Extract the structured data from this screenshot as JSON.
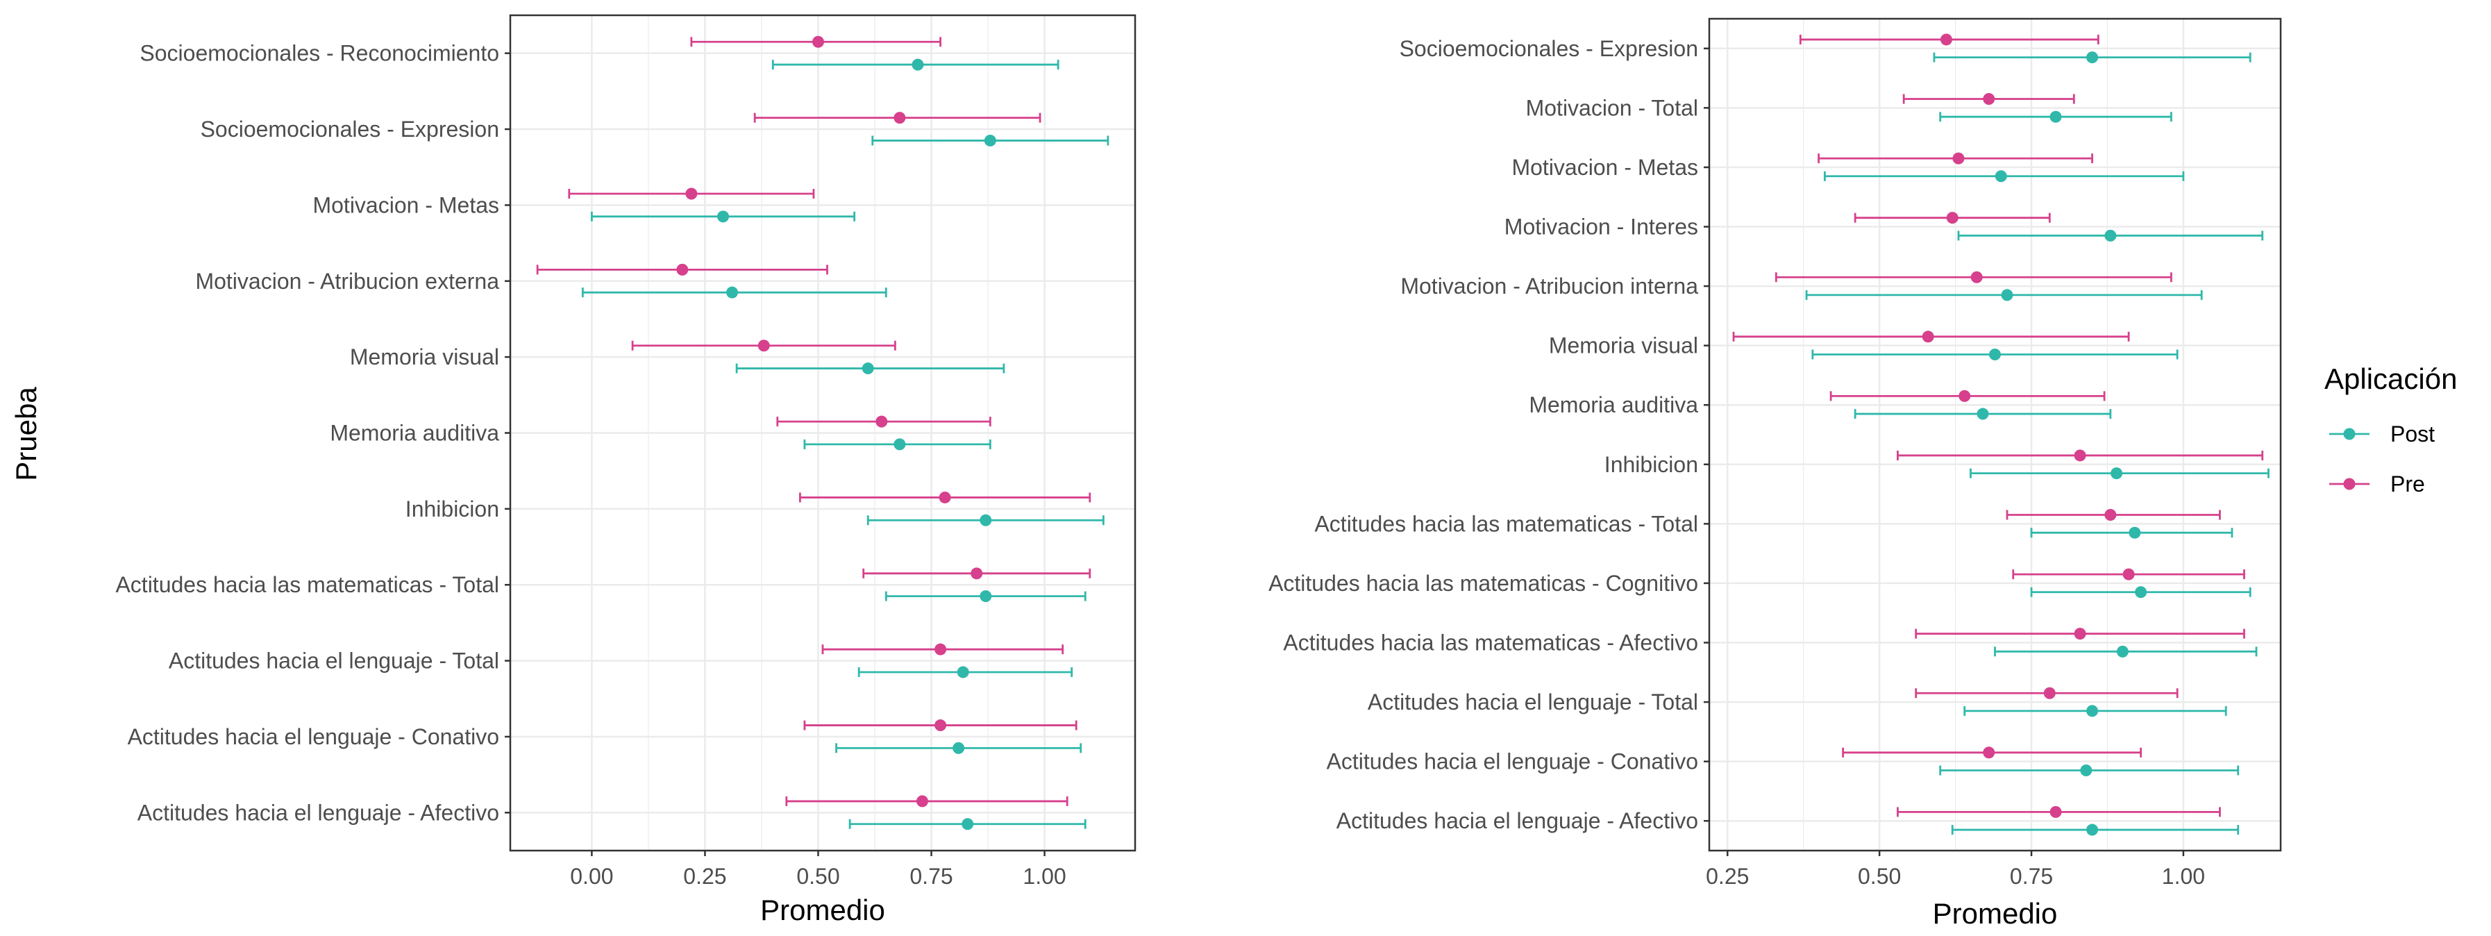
{
  "colors": {
    "Post": "#2fb8aa",
    "Pre": "#d6408c",
    "grid": "#ebebeb",
    "panel_border": "#333333"
  },
  "legend": {
    "title": "Aplicación",
    "entries": [
      "Post",
      "Pre"
    ]
  },
  "chart_data": [
    {
      "type": "errorbar-dot",
      "xlabel": "Promedio",
      "ylabel": "Prueba",
      "xlim": [
        -0.18,
        1.2
      ],
      "x_ticks": [
        0.0,
        0.25,
        0.5,
        0.75,
        1.0
      ],
      "x_tick_labels": [
        "0.00",
        "0.25",
        "0.50",
        "0.75",
        "1.00"
      ],
      "categories": [
        "Socioemocionales - Reconocimiento",
        "Socioemocionales - Expresion",
        "Motivacion - Metas",
        "Motivacion - Atribucion externa",
        "Memoria visual",
        "Memoria auditiva",
        "Inhibicion",
        "Actitudes hacia las matematicas - Total",
        "Actitudes hacia el lenguaje - Total",
        "Actitudes hacia el lenguaje - Conativo",
        "Actitudes hacia el lenguaje - Afectivo"
      ],
      "series": [
        {
          "name": "Pre",
          "mean": [
            0.5,
            0.68,
            0.22,
            0.2,
            0.38,
            0.64,
            0.78,
            0.85,
            0.77,
            0.77,
            0.73
          ],
          "lower": [
            0.22,
            0.36,
            -0.05,
            -0.12,
            0.09,
            0.41,
            0.46,
            0.6,
            0.51,
            0.47,
            0.43
          ],
          "upper": [
            0.77,
            0.99,
            0.49,
            0.52,
            0.67,
            0.88,
            1.1,
            1.1,
            1.04,
            1.07,
            1.05
          ]
        },
        {
          "name": "Post",
          "mean": [
            0.72,
            0.88,
            0.29,
            0.31,
            0.61,
            0.68,
            0.87,
            0.87,
            0.82,
            0.81,
            0.83
          ],
          "lower": [
            0.4,
            0.62,
            0.0,
            -0.02,
            0.32,
            0.47,
            0.61,
            0.65,
            0.59,
            0.54,
            0.57
          ],
          "upper": [
            1.03,
            1.14,
            0.58,
            0.65,
            0.91,
            0.88,
            1.13,
            1.09,
            1.06,
            1.08,
            1.09
          ]
        }
      ]
    },
    {
      "type": "errorbar-dot",
      "xlabel": "Promedio",
      "ylabel": "",
      "xlim": [
        0.22,
        1.16
      ],
      "x_ticks": [
        0.25,
        0.5,
        0.75,
        1.0
      ],
      "x_tick_labels": [
        "0.25",
        "0.50",
        "0.75",
        "1.00"
      ],
      "categories": [
        "Socioemocionales - Expresion",
        "Motivacion - Total",
        "Motivacion - Metas",
        "Motivacion - Interes",
        "Motivacion - Atribucion interna",
        "Memoria visual",
        "Memoria auditiva",
        "Inhibicion",
        "Actitudes hacia las matematicas - Total",
        "Actitudes hacia las matematicas - Cognitivo",
        "Actitudes hacia las matematicas - Afectivo",
        "Actitudes hacia el lenguaje - Total",
        "Actitudes hacia el lenguaje - Conativo",
        "Actitudes hacia el lenguaje - Afectivo"
      ],
      "series": [
        {
          "name": "Pre",
          "mean": [
            0.61,
            0.68,
            0.63,
            0.62,
            0.66,
            0.58,
            0.64,
            0.83,
            0.88,
            0.91,
            0.83,
            0.78,
            0.68,
            0.79
          ],
          "lower": [
            0.37,
            0.54,
            0.4,
            0.46,
            0.33,
            0.26,
            0.42,
            0.53,
            0.71,
            0.72,
            0.56,
            0.56,
            0.44,
            0.53
          ],
          "upper": [
            0.86,
            0.82,
            0.85,
            0.78,
            0.98,
            0.91,
            0.87,
            1.13,
            1.06,
            1.1,
            1.1,
            0.99,
            0.93,
            1.06
          ]
        },
        {
          "name": "Post",
          "mean": [
            0.85,
            0.79,
            0.7,
            0.88,
            0.71,
            0.69,
            0.67,
            0.89,
            0.92,
            0.93,
            0.9,
            0.85,
            0.84,
            0.85
          ],
          "lower": [
            0.59,
            0.6,
            0.41,
            0.63,
            0.38,
            0.39,
            0.46,
            0.65,
            0.75,
            0.75,
            0.69,
            0.64,
            0.6,
            0.62
          ],
          "upper": [
            1.11,
            0.98,
            1.0,
            1.13,
            1.03,
            0.99,
            0.88,
            1.14,
            1.08,
            1.11,
            1.12,
            1.07,
            1.09,
            1.09
          ]
        }
      ]
    }
  ]
}
